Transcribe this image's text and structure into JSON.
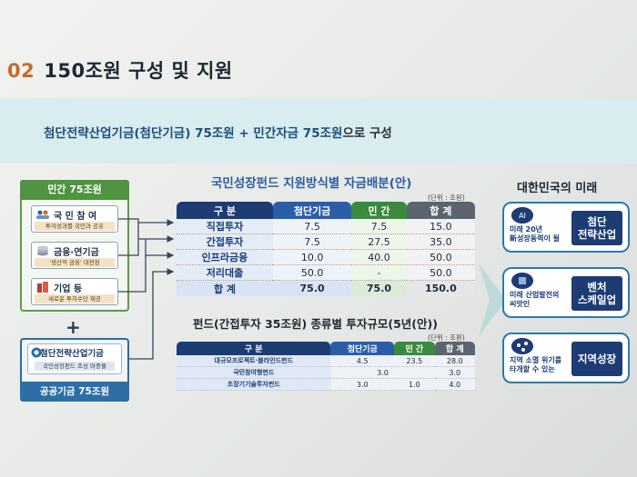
{
  "heading": {
    "number": "02",
    "title": "150조원 구성 및 지원"
  },
  "banner": {
    "part1": "첨단전략산업기금(첨단기금) 75조원 + 민간자금 75조원",
    "part2": "으로 구성"
  },
  "left": {
    "private_title": "민간 75조원",
    "items": [
      {
        "title": "국 민 참 여",
        "sub": "투자성과를 국민과 공유"
      },
      {
        "title": "금융·연기금",
        "sub": "'생산적 금융' 대전환"
      },
      {
        "title": "기업 등",
        "sub": "새로운 투자수단 제공"
      }
    ],
    "plus": "+",
    "public_box_title": "첨단전략산업기금",
    "public_box_sub": "국민성장펀드 조성 마중물",
    "public_title": "공공기금 75조원"
  },
  "table1": {
    "title": "국민성장펀드 지원방식별 자금배분(안)",
    "unit": "(단위 : 조원)",
    "headers": [
      "구 분",
      "첨단기금",
      "민 간",
      "합 계"
    ],
    "rows": [
      [
        "직접투자",
        "7.5",
        "7.5",
        "15.0"
      ],
      [
        "간접투자",
        "7.5",
        "27.5",
        "35.0"
      ],
      [
        "인프라금융",
        "10.0",
        "40.0",
        "50.0"
      ],
      [
        "저리대출",
        "50.0",
        "-",
        "50.0"
      ]
    ],
    "total": [
      "합 계",
      "75.0",
      "75.0",
      "150.0"
    ]
  },
  "table2": {
    "title": "펀드(간접투자 35조원) 종류별 투자규모(5년(안))",
    "unit": "(단위 : 조원)",
    "headers": [
      "구 분",
      "첨단기금",
      "민 간",
      "합 계"
    ],
    "rows": [
      {
        "name": "대규모프로젝트·블라인드펀드",
        "a": "4.5",
        "b": "23.5",
        "t": "28.0"
      },
      {
        "name": "국민참여형펀드",
        "merged": "3.0",
        "t": "3.0"
      },
      {
        "name": "초장기기술투자펀드",
        "a": "3.0",
        "b": "1.0",
        "t": "4.0"
      }
    ]
  },
  "right": {
    "title": "대한민국의 미래",
    "boxes": [
      {
        "desc1": "미래 20년",
        "desc2": "新성장동력이 될",
        "tag": "첨단\n전략산업"
      },
      {
        "desc1": "미래 산업발전의",
        "desc2": "씨앗인",
        "tag": "벤처\n스케일업"
      },
      {
        "desc1": "지역 소멸 위기를",
        "desc2": "타개할 수 있는",
        "tag": "지역성장"
      }
    ]
  },
  "colors": {
    "accent_orange": "#c8692c",
    "navy": "#1d3c74",
    "green": "#3a8a3f",
    "blue": "#2b5ea8"
  }
}
